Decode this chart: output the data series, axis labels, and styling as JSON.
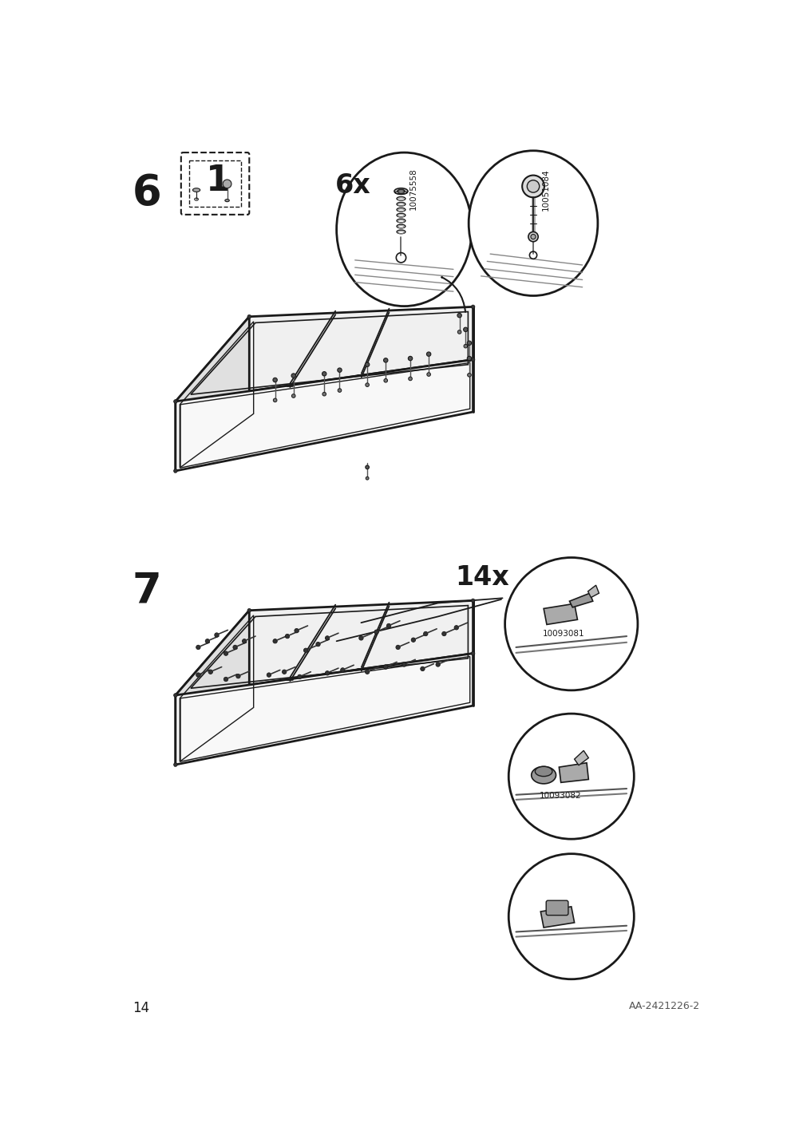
{
  "page_num": "14",
  "doc_code": "AA-2421226-2",
  "step6_label": "6",
  "step7_label": "7",
  "qty1": "6x",
  "qty2": "14x",
  "part1_code": "10075558",
  "part2_code": "10051084",
  "part3_code": "10093081",
  "part4_code": "10093082",
  "bg_color": "#ffffff",
  "line_color": "#1a1a1a"
}
